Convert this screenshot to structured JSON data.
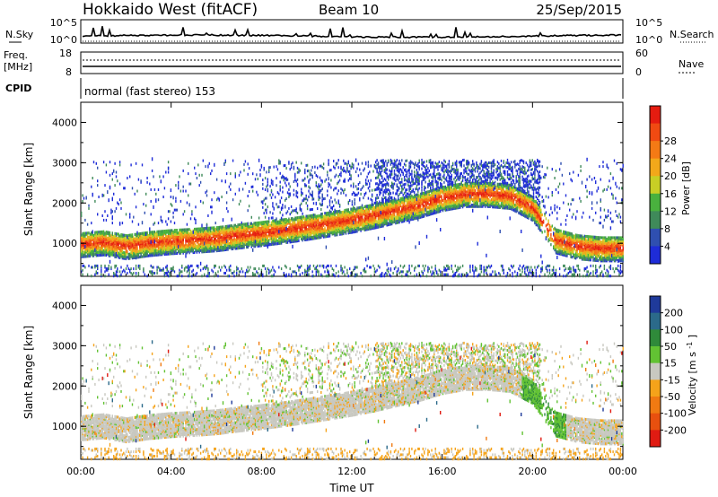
{
  "header": {
    "title": "Hokkaido West (fitACF)",
    "beam": "Beam 10",
    "date": "25/Sep/2015"
  },
  "strips": {
    "noise": {
      "left_label": "N.Sky",
      "left_top": "10^5",
      "left_bottom": "10^0",
      "right_top": "10^5",
      "right_bottom": "10^0",
      "right_label": "N.Search"
    },
    "freq": {
      "left_label_1": "Freq.",
      "left_label_2": "[MHz]",
      "left_top": "18",
      "left_bottom": "8",
      "right_top": "60",
      "right_bottom": "0",
      "right_label": "Nave"
    },
    "cpid": {
      "label": "CPID",
      "mode": "normal (fast stereo) 153"
    }
  },
  "chart_data": [
    {
      "type": "heatmap",
      "title": "Power",
      "xlabel": "",
      "ylabel": "Slant Range [km]",
      "x_ticks": [
        "00:00",
        "04:00",
        "08:00",
        "12:00",
        "16:00",
        "20:00",
        "00:00"
      ],
      "xlim_hours": [
        0,
        24
      ],
      "y_ticks": [
        1000,
        2000,
        3000,
        4000
      ],
      "ylim": [
        180,
        4500
      ],
      "main_echo_range_km": [
        {
          "hour": 0,
          "range": 1000
        },
        {
          "hour": 1,
          "range": 1050
        },
        {
          "hour": 2,
          "range": 950
        },
        {
          "hour": 3,
          "range": 1030
        },
        {
          "hour": 4,
          "range": 1080
        },
        {
          "hour": 5,
          "range": 1110
        },
        {
          "hour": 6,
          "range": 1150
        },
        {
          "hour": 7,
          "range": 1220
        },
        {
          "hour": 8,
          "range": 1280
        },
        {
          "hour": 9,
          "range": 1350
        },
        {
          "hour": 10,
          "range": 1430
        },
        {
          "hour": 11,
          "range": 1520
        },
        {
          "hour": 12,
          "range": 1610
        },
        {
          "hour": 13,
          "range": 1720
        },
        {
          "hour": 14,
          "range": 1850
        },
        {
          "hour": 15,
          "range": 1980
        },
        {
          "hour": 16,
          "range": 2150
        },
        {
          "hour": 17,
          "range": 2250
        },
        {
          "hour": 18,
          "range": 2250
        },
        {
          "hour": 19,
          "range": 2200
        },
        {
          "hour": 20,
          "range": 1900
        },
        {
          "hour": 21,
          "range": 1100
        },
        {
          "hour": 22,
          "range": 950
        },
        {
          "hour": 23,
          "range": 900
        },
        {
          "hour": 24,
          "range": 900
        }
      ],
      "colorbar": {
        "label": "Power [dB]",
        "ticks": [
          "4",
          "8",
          "12",
          "16",
          "20",
          "24",
          "28"
        ],
        "colors": [
          "#1e2cd8",
          "#2f4fb0",
          "#3f8a5a",
          "#49b13e",
          "#c8cf25",
          "#f2a81a",
          "#f47a15",
          "#f04a12",
          "#e51c10"
        ]
      }
    },
    {
      "type": "heatmap",
      "title": "Velocity",
      "xlabel": "Time UT",
      "ylabel": "Slant Range [km]",
      "x_ticks": [
        "00:00",
        "04:00",
        "08:00",
        "12:00",
        "16:00",
        "20:00",
        "00:00"
      ],
      "xlim_hours": [
        0,
        24
      ],
      "y_ticks": [
        1000,
        2000,
        3000,
        4000
      ],
      "ylim": [
        180,
        4500
      ],
      "colorbar": {
        "label": "Velocity ",
        "unit": "[m s",
        "unit_exp": "-1",
        "unit_close": "]",
        "ticks": [
          "200",
          "100",
          "50",
          "15",
          "-15",
          "-50",
          "-100",
          "-200"
        ],
        "colors": [
          "#1f3a9a",
          "#2b6a8a",
          "#2f8a3a",
          "#62c233",
          "#c8c8c0",
          "#f5a31a",
          "#f07a12",
          "#e8500f",
          "#e01b12"
        ]
      }
    }
  ]
}
